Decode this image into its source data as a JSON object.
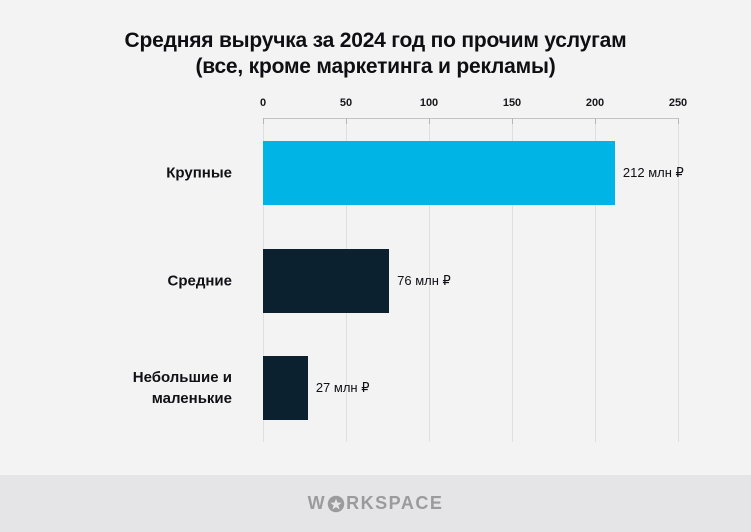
{
  "title": {
    "line1": "Средняя выручка за 2024 год по прочим услугам",
    "line2": "(все, кроме маркетинга и рекламы)"
  },
  "chart_data": {
    "type": "bar",
    "orientation": "horizontal",
    "title": "Средняя выручка за 2024 год по прочим услугам (все, кроме маркетинга и рекламы)",
    "categories": [
      "Крупные",
      "Средние",
      "Небольшие и маленькие"
    ],
    "values": [
      212,
      76,
      27
    ],
    "value_labels": [
      "212 млн ₽",
      "76 млн ₽",
      "27 млн ₽"
    ],
    "x_ticks": [
      "0",
      "50",
      "100",
      "150",
      "200",
      "250"
    ],
    "xlim": [
      0,
      250
    ],
    "grid": true,
    "bar_colors": [
      "#00B4E6",
      "#0B2130",
      "#0B2130"
    ],
    "unit": "млн ₽"
  },
  "footer": {
    "logo_prefix": "W",
    "logo_suffix": "RKSPACE",
    "logo_icon": "star-circle-icon"
  },
  "colors": {
    "page_background": "#F3F3F4",
    "footer_background": "#E5E5E7",
    "accent_cyan": "#00B4E6",
    "dark_navy": "#0B2130",
    "logo_gray": "#9B9B9D"
  }
}
